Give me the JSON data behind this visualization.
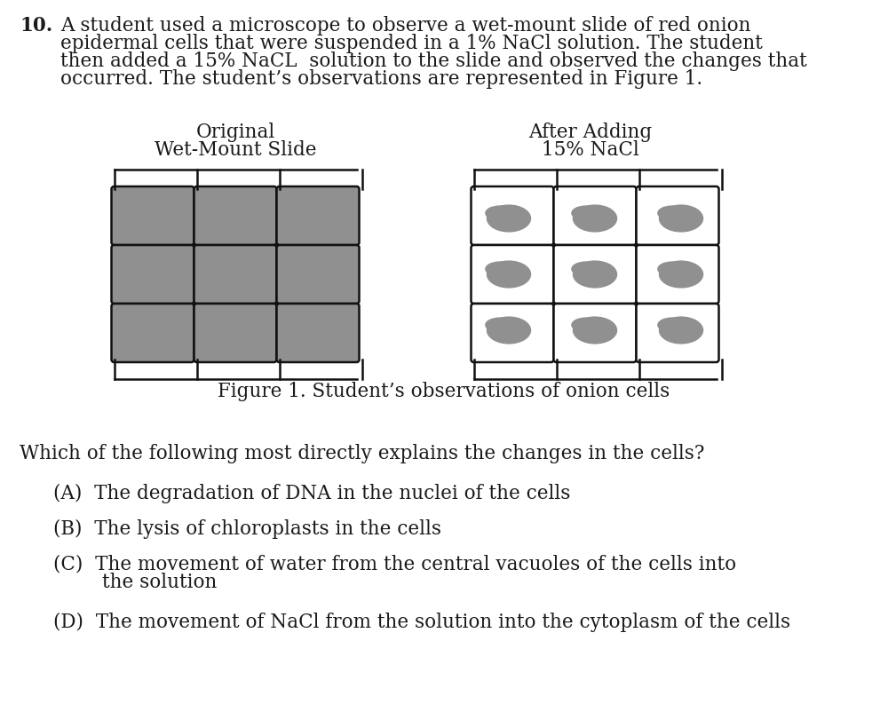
{
  "background_color": "#ffffff",
  "text_color": "#1a1a1a",
  "cell_fill_dark": "#909090",
  "cell_wall_color": "#111111",
  "question_number": "10.",
  "line1": "A student used a microscope to observe a wet-mount slide of red onion",
  "line2": "epidermal cells that were suspended in a 1% NaCl solution. The student",
  "line3": "then added a 15% NaCL  solution to the slide and observed the changes that",
  "line4": "occurred. The student’s observations are represented in Figure 1.",
  "label_left_1": "Original",
  "label_left_2": "Wet-Mount Slide",
  "label_right_1": "After Adding",
  "label_right_2": "15% NaCl",
  "figure_caption": "Figure 1. Student’s observations of onion cells",
  "question2": "Which of the following most directly explains the changes in the cells?",
  "answer_A": "(A)  The degradation of DNA in the nuclei of the cells",
  "answer_B": "(B)  The lysis of chloroplasts in the cells",
  "answer_C1": "(C)  The movement of water from the central vacuoles of the cells into",
  "answer_C2": "        the solution",
  "answer_D": "(D)  The movement of NaCl from the solution into the cytoplasm of the cells",
  "font_family": "DejaVu Serif",
  "body_fontsize": 15.5
}
